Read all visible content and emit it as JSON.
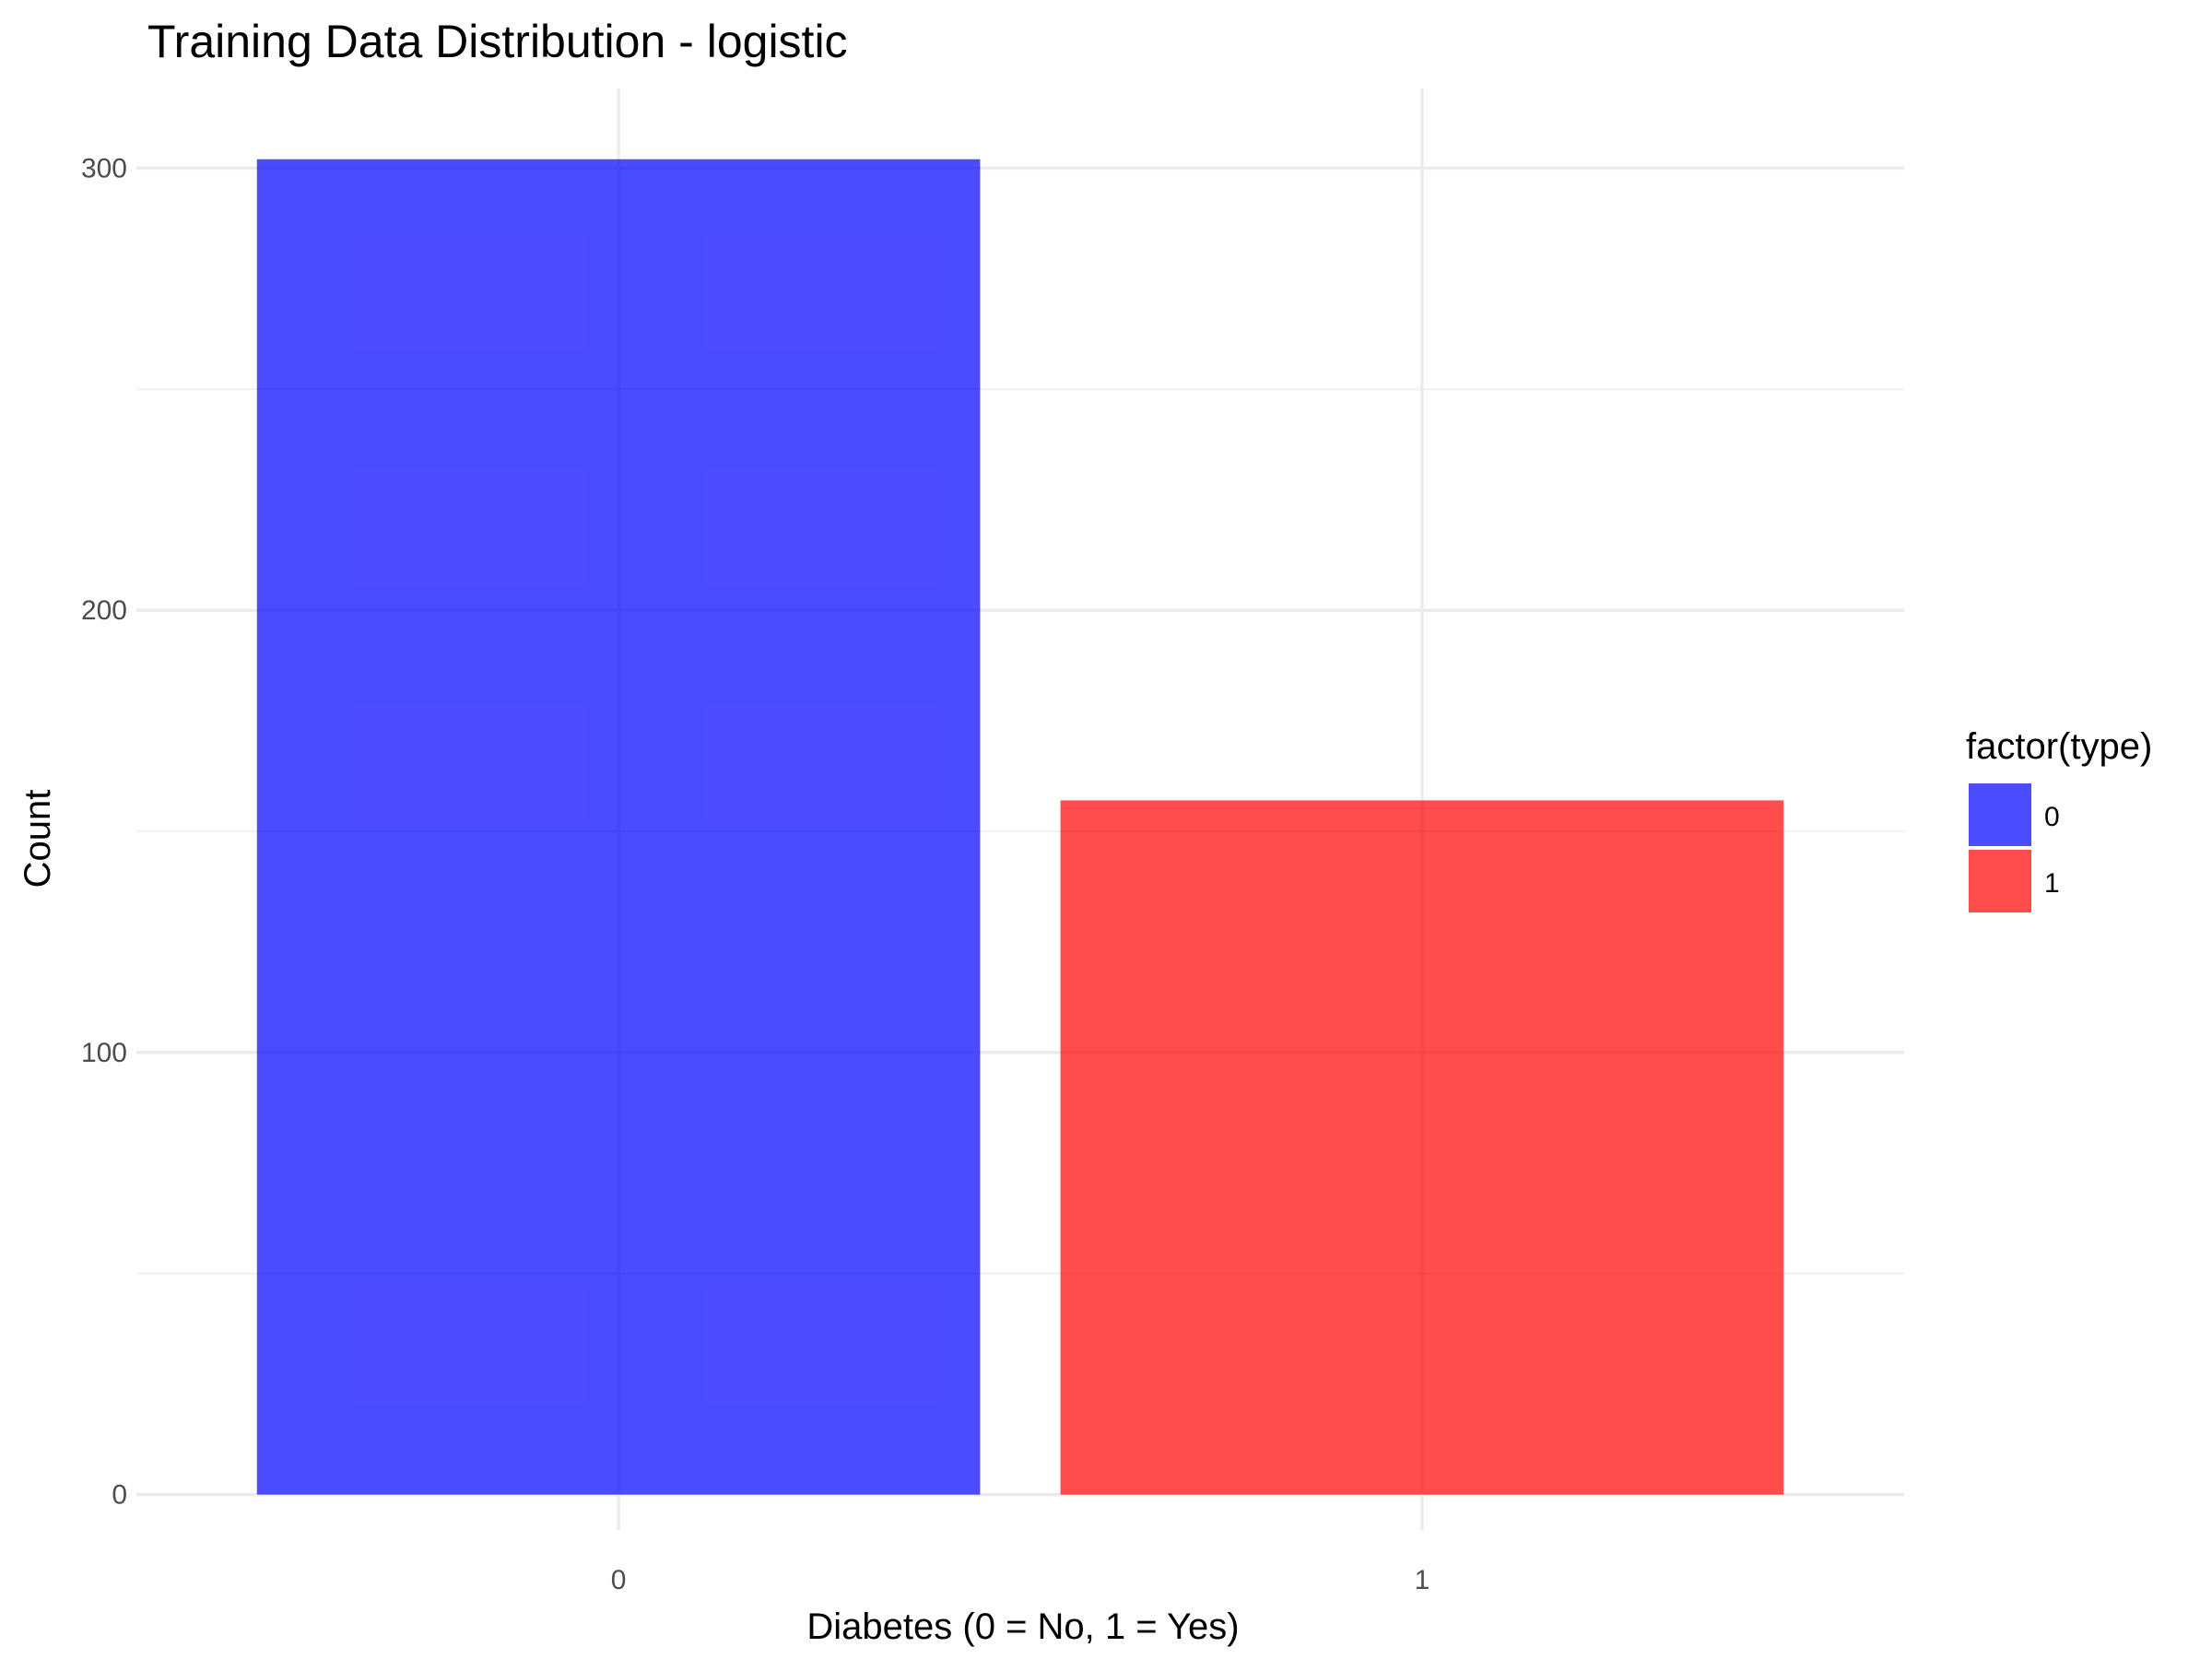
{
  "chart_data": {
    "type": "bar",
    "title": "Training Data Distribution - logistic",
    "xlabel": "Diabetes (0 = No, 1 = Yes)",
    "ylabel": "Count",
    "categories": [
      "0",
      "1"
    ],
    "values": [
      302,
      157
    ],
    "bar_colors": [
      "#0000FF",
      "#FF0000"
    ],
    "bar_opacity": 0.7,
    "ylim": [
      -8,
      318
    ],
    "yticks": [
      0,
      100,
      200,
      300
    ],
    "grid": true,
    "legend": {
      "title": "factor(type)",
      "position": "right",
      "items": [
        {
          "label": "0",
          "color": "#0000FF"
        },
        {
          "label": "1",
          "color": "#FF0000"
        }
      ]
    }
  }
}
